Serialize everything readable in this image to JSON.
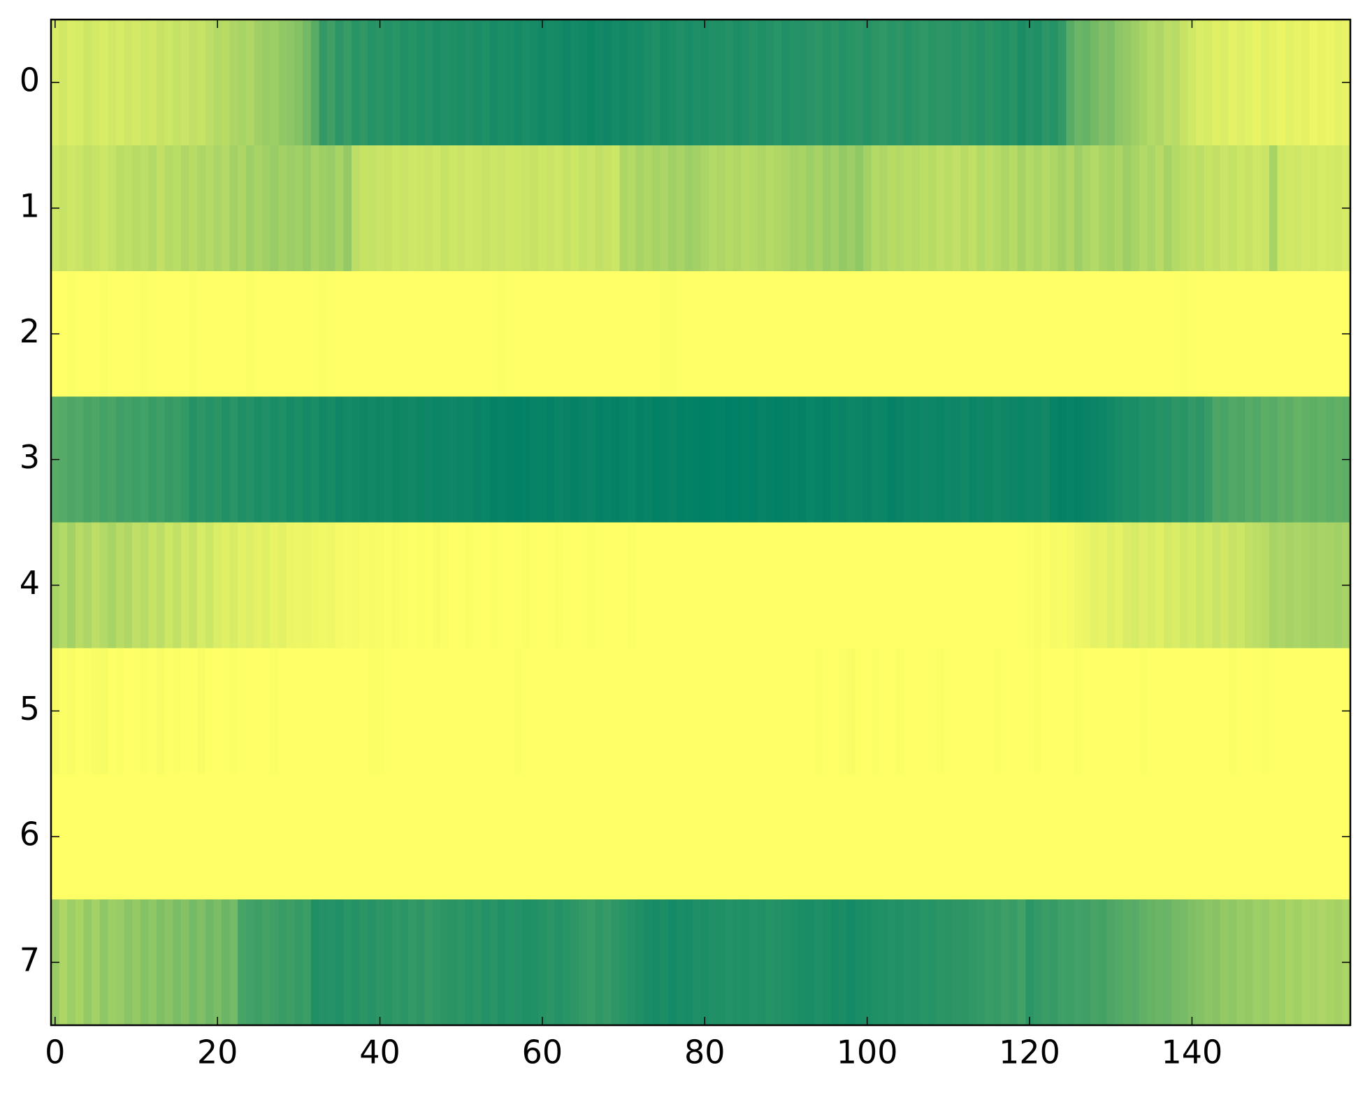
{
  "chart_data": {
    "type": "heatmap",
    "colormap": "summer",
    "xlim": [
      -0.5,
      159.5
    ],
    "ylim": [
      7.5,
      -0.5
    ],
    "xticks": [
      0,
      20,
      40,
      60,
      80,
      100,
      120,
      140
    ],
    "yticks": [
      0,
      1,
      2,
      3,
      4,
      5,
      6,
      7
    ],
    "values": [
      [
        0.85,
        0.82,
        0.86,
        0.84,
        0.8,
        0.83,
        0.85,
        0.82,
        0.84,
        0.81,
        0.83,
        0.8,
        0.82,
        0.78,
        0.8,
        0.77,
        0.79,
        0.76,
        0.78,
        0.74,
        0.7,
        0.72,
        0.68,
        0.66,
        0.69,
        0.63,
        0.6,
        0.62,
        0.57,
        0.55,
        0.52,
        0.45,
        0.35,
        0.2,
        0.25,
        0.18,
        0.22,
        0.16,
        0.19,
        0.15,
        0.17,
        0.14,
        0.16,
        0.13,
        0.15,
        0.12,
        0.14,
        0.11,
        0.13,
        0.12,
        0.11,
        0.13,
        0.1,
        0.12,
        0.09,
        0.11,
        0.1,
        0.08,
        0.1,
        0.09,
        0.07,
        0.09,
        0.08,
        0.06,
        0.08,
        0.07,
        0.05,
        0.07,
        0.06,
        0.08,
        0.07,
        0.09,
        0.08,
        0.1,
        0.12,
        0.09,
        0.11,
        0.13,
        0.1,
        0.12,
        0.11,
        0.13,
        0.12,
        0.14,
        0.11,
        0.13,
        0.15,
        0.12,
        0.14,
        0.16,
        0.13,
        0.15,
        0.14,
        0.16,
        0.18,
        0.15,
        0.17,
        0.14,
        0.16,
        0.18,
        0.15,
        0.17,
        0.19,
        0.16,
        0.18,
        0.15,
        0.17,
        0.19,
        0.16,
        0.18,
        0.17,
        0.15,
        0.18,
        0.16,
        0.14,
        0.17,
        0.15,
        0.13,
        0.16,
        0.1,
        0.14,
        0.12,
        0.18,
        0.15,
        0.2,
        0.35,
        0.42,
        0.4,
        0.45,
        0.5,
        0.48,
        0.55,
        0.58,
        0.62,
        0.66,
        0.7,
        0.68,
        0.74,
        0.72,
        0.78,
        0.82,
        0.86,
        0.84,
        0.88,
        0.86,
        0.9,
        0.87,
        0.89,
        0.91,
        0.88,
        0.9,
        0.92,
        0.89,
        0.91,
        0.9,
        0.93,
        0.91,
        0.92,
        0.9,
        0.91
      ],
      [
        0.8,
        0.78,
        0.81,
        0.79,
        0.76,
        0.78,
        0.8,
        0.77,
        0.73,
        0.75,
        0.72,
        0.74,
        0.7,
        0.76,
        0.71,
        0.73,
        0.69,
        0.72,
        0.68,
        0.71,
        0.67,
        0.7,
        0.64,
        0.68,
        0.62,
        0.66,
        0.63,
        0.6,
        0.64,
        0.61,
        0.63,
        0.59,
        0.65,
        0.62,
        0.6,
        0.66,
        0.58,
        0.74,
        0.78,
        0.77,
        0.79,
        0.78,
        0.8,
        0.79,
        0.81,
        0.8,
        0.79,
        0.81,
        0.78,
        0.8,
        0.79,
        0.81,
        0.8,
        0.78,
        0.8,
        0.79,
        0.81,
        0.8,
        0.79,
        0.78,
        0.8,
        0.79,
        0.81,
        0.78,
        0.8,
        0.77,
        0.79,
        0.76,
        0.78,
        0.8,
        0.68,
        0.7,
        0.66,
        0.69,
        0.65,
        0.67,
        0.63,
        0.66,
        0.62,
        0.64,
        0.67,
        0.7,
        0.68,
        0.71,
        0.69,
        0.72,
        0.7,
        0.68,
        0.71,
        0.69,
        0.67,
        0.64,
        0.66,
        0.62,
        0.65,
        0.6,
        0.63,
        0.58,
        0.61,
        0.57,
        0.64,
        0.7,
        0.68,
        0.72,
        0.7,
        0.73,
        0.71,
        0.74,
        0.72,
        0.75,
        0.73,
        0.76,
        0.72,
        0.75,
        0.7,
        0.74,
        0.71,
        0.68,
        0.72,
        0.65,
        0.7,
        0.67,
        0.71,
        0.68,
        0.64,
        0.69,
        0.62,
        0.67,
        0.7,
        0.66,
        0.64,
        0.68,
        0.62,
        0.66,
        0.7,
        0.67,
        0.72,
        0.65,
        0.7,
        0.73,
        0.76,
        0.74,
        0.78,
        0.76,
        0.79,
        0.77,
        0.8,
        0.78,
        0.81,
        0.79,
        0.66,
        0.8,
        0.82,
        0.81,
        0.83,
        0.82,
        0.84,
        0.83,
        0.82,
        0.84
      ],
      [
        1.0,
        1.0,
        0.99,
        1.0,
        1.0,
        1.0,
        0.99,
        1.0,
        1.0,
        1.0,
        1.0,
        0.99,
        1.0,
        1.0,
        1.0,
        1.0,
        1.0,
        0.99,
        1.0,
        1.0,
        1.0,
        1.0,
        1.0,
        1.0,
        0.99,
        1.0,
        1.0,
        1.0,
        1.0,
        1.0,
        1.0,
        1.0,
        1.0,
        0.99,
        1.0,
        1.0,
        1.0,
        1.0,
        1.0,
        1.0,
        1.0,
        1.0,
        1.0,
        1.0,
        1.0,
        1.0,
        1.0,
        1.0,
        1.0,
        1.0,
        1.0,
        1.0,
        1.0,
        1.0,
        1.0,
        0.99,
        1.0,
        1.0,
        1.0,
        1.0,
        1.0,
        1.0,
        1.0,
        1.0,
        1.0,
        1.0,
        1.0,
        1.0,
        1.0,
        1.0,
        1.0,
        1.0,
        1.0,
        1.0,
        1.0,
        0.99,
        0.99,
        1.0,
        1.0,
        1.0,
        1.0,
        1.0,
        1.0,
        1.0,
        1.0,
        1.0,
        1.0,
        1.0,
        1.0,
        1.0,
        1.0,
        1.0,
        1.0,
        1.0,
        1.0,
        1.0,
        1.0,
        1.0,
        1.0,
        1.0,
        1.0,
        1.0,
        1.0,
        1.0,
        1.0,
        1.0,
        1.0,
        1.0,
        1.0,
        1.0,
        1.0,
        1.0,
        1.0,
        1.0,
        1.0,
        1.0,
        1.0,
        1.0,
        1.0,
        1.0,
        1.0,
        1.0,
        1.0,
        1.0,
        1.0,
        1.0,
        1.0,
        1.0,
        1.0,
        1.0,
        1.0,
        1.0,
        1.0,
        1.0,
        1.0,
        1.0,
        1.0,
        1.0,
        1.0,
        0.99,
        1.0,
        1.0,
        1.0,
        1.0,
        1.0,
        1.0,
        1.0,
        1.0,
        1.0,
        1.0,
        1.0,
        1.0,
        1.0,
        1.0,
        1.0,
        1.0,
        1.0,
        1.0,
        1.0,
        1.0
      ],
      [
        0.35,
        0.33,
        0.3,
        0.32,
        0.28,
        0.3,
        0.27,
        0.29,
        0.25,
        0.27,
        0.24,
        0.26,
        0.22,
        0.25,
        0.21,
        0.23,
        0.2,
        0.14,
        0.18,
        0.15,
        0.17,
        0.13,
        0.16,
        0.12,
        0.14,
        0.11,
        0.13,
        0.1,
        0.12,
        0.09,
        0.11,
        0.08,
        0.1,
        0.07,
        0.09,
        0.06,
        0.08,
        0.07,
        0.06,
        0.07,
        0.06,
        0.07,
        0.05,
        0.06,
        0.07,
        0.05,
        0.06,
        0.04,
        0.05,
        0.06,
        0.04,
        0.05,
        0.03,
        0.04,
        0.02,
        0.03,
        0.02,
        0.01,
        0.02,
        0.03,
        0.03,
        0.02,
        0.04,
        0.03,
        0.02,
        0.03,
        0.04,
        0.02,
        0.03,
        0.02,
        0.03,
        0.04,
        0.02,
        0.03,
        0.01,
        0.02,
        0.03,
        0.01,
        0.02,
        0.01,
        0.0,
        0.01,
        0.02,
        0.0,
        0.01,
        0.02,
        0.01,
        0.03,
        0.02,
        0.01,
        0.02,
        0.03,
        0.02,
        0.04,
        0.03,
        0.02,
        0.04,
        0.03,
        0.05,
        0.04,
        0.03,
        0.05,
        0.04,
        0.02,
        0.03,
        0.05,
        0.04,
        0.06,
        0.05,
        0.04,
        0.06,
        0.05,
        0.07,
        0.04,
        0.06,
        0.05,
        0.07,
        0.06,
        0.05,
        0.04,
        0.06,
        0.05,
        0.07,
        0.03,
        0.02,
        0.03,
        0.02,
        0.03,
        0.04,
        0.05,
        0.07,
        0.09,
        0.11,
        0.1,
        0.13,
        0.12,
        0.15,
        0.14,
        0.18,
        0.16,
        0.2,
        0.18,
        0.22,
        0.3,
        0.28,
        0.32,
        0.3,
        0.34,
        0.32,
        0.36,
        0.34,
        0.38,
        0.36,
        0.4,
        0.38,
        0.37,
        0.39,
        0.36,
        0.38,
        0.37
      ],
      [
        0.66,
        0.7,
        0.64,
        0.72,
        0.68,
        0.74,
        0.7,
        0.66,
        0.72,
        0.69,
        0.75,
        0.72,
        0.78,
        0.74,
        0.8,
        0.76,
        0.82,
        0.78,
        0.84,
        0.8,
        0.86,
        0.88,
        0.85,
        0.89,
        0.87,
        0.9,
        0.88,
        0.91,
        0.89,
        0.92,
        0.93,
        0.92,
        0.94,
        0.95,
        0.94,
        0.96,
        0.97,
        0.96,
        0.98,
        0.97,
        0.98,
        0.99,
        0.98,
        0.99,
        1.0,
        0.99,
        1.0,
        0.98,
        0.99,
        1.0,
        1.0,
        0.99,
        1.0,
        1.0,
        0.99,
        1.0,
        1.0,
        1.0,
        0.99,
        1.0,
        1.0,
        1.0,
        0.99,
        1.0,
        1.0,
        1.0,
        0.99,
        1.0,
        1.0,
        1.0,
        1.0,
        0.99,
        1.0,
        1.0,
        1.0,
        1.0,
        1.0,
        1.0,
        1.0,
        1.0,
        1.0,
        1.0,
        1.0,
        1.0,
        1.0,
        1.0,
        1.0,
        1.0,
        1.0,
        1.0,
        1.0,
        1.0,
        1.0,
        1.0,
        1.0,
        1.0,
        1.0,
        1.0,
        1.0,
        1.0,
        1.0,
        1.0,
        1.0,
        1.0,
        1.0,
        1.0,
        1.0,
        1.0,
        1.0,
        1.0,
        1.0,
        1.0,
        1.0,
        1.0,
        1.0,
        1.0,
        1.0,
        1.0,
        1.0,
        1.0,
        0.99,
        0.98,
        0.99,
        0.97,
        0.98,
        0.96,
        0.94,
        0.92,
        0.9,
        0.91,
        0.88,
        0.9,
        0.86,
        0.84,
        0.87,
        0.85,
        0.88,
        0.83,
        0.86,
        0.82,
        0.84,
        0.8,
        0.83,
        0.79,
        0.82,
        0.78,
        0.8,
        0.76,
        0.74,
        0.72,
        0.66,
        0.68,
        0.65,
        0.67,
        0.66,
        0.64,
        0.66,
        0.65,
        0.63,
        0.66
      ],
      [
        0.97,
        0.99,
        0.98,
        1.0,
        0.99,
        0.98,
        0.97,
        1.0,
        0.99,
        1.0,
        1.0,
        0.99,
        1.0,
        0.98,
        1.0,
        0.99,
        1.0,
        1.0,
        0.98,
        1.0,
        1.0,
        1.0,
        0.99,
        1.0,
        1.0,
        1.0,
        1.0,
        0.99,
        1.0,
        1.0,
        1.0,
        1.0,
        1.0,
        1.0,
        1.0,
        1.0,
        1.0,
        1.0,
        1.0,
        0.99,
        0.99,
        1.0,
        1.0,
        1.0,
        1.0,
        1.0,
        1.0,
        1.0,
        1.0,
        1.0,
        1.0,
        1.0,
        1.0,
        1.0,
        1.0,
        1.0,
        1.0,
        0.99,
        1.0,
        1.0,
        1.0,
        1.0,
        1.0,
        1.0,
        1.0,
        1.0,
        1.0,
        1.0,
        1.0,
        1.0,
        1.0,
        1.0,
        1.0,
        1.0,
        1.0,
        1.0,
        1.0,
        1.0,
        1.0,
        1.0,
        1.0,
        1.0,
        1.0,
        1.0,
        1.0,
        1.0,
        1.0,
        1.0,
        1.0,
        1.0,
        1.0,
        1.0,
        1.0,
        1.0,
        0.99,
        1.0,
        1.0,
        0.99,
        0.98,
        1.0,
        1.0,
        0.99,
        1.0,
        1.0,
        0.99,
        1.0,
        1.0,
        1.0,
        1.0,
        0.99,
        1.0,
        1.0,
        1.0,
        1.0,
        1.0,
        1.0,
        0.99,
        1.0,
        1.0,
        1.0,
        1.0,
        0.99,
        1.0,
        1.0,
        1.0,
        1.0,
        0.99,
        1.0,
        1.0,
        1.0,
        1.0,
        1.0,
        1.0,
        1.0,
        0.99,
        1.0,
        1.0,
        1.0,
        1.0,
        1.0,
        1.0,
        1.0,
        1.0,
        1.0,
        1.0,
        0.99,
        1.0,
        1.0,
        1.0,
        0.99,
        1.0,
        1.0,
        1.0,
        1.0,
        1.0,
        1.0,
        1.0,
        1.0,
        1.0,
        1.0
      ],
      [
        1.0,
        1.0,
        1.0,
        1.0,
        1.0,
        1.0,
        1.0,
        1.0,
        1.0,
        1.0,
        1.0,
        1.0,
        1.0,
        1.0,
        1.0,
        1.0,
        1.0,
        1.0,
        1.0,
        1.0,
        1.0,
        1.0,
        1.0,
        1.0,
        1.0,
        1.0,
        1.0,
        1.0,
        1.0,
        1.0,
        1.0,
        1.0,
        1.0,
        1.0,
        1.0,
        1.0,
        1.0,
        1.0,
        1.0,
        1.0,
        1.0,
        1.0,
        1.0,
        1.0,
        1.0,
        1.0,
        1.0,
        1.0,
        1.0,
        1.0,
        1.0,
        1.0,
        1.0,
        1.0,
        1.0,
        1.0,
        1.0,
        1.0,
        1.0,
        1.0,
        1.0,
        1.0,
        1.0,
        1.0,
        1.0,
        1.0,
        1.0,
        1.0,
        1.0,
        1.0,
        1.0,
        1.0,
        1.0,
        1.0,
        1.0,
        1.0,
        1.0,
        1.0,
        1.0,
        1.0,
        1.0,
        1.0,
        1.0,
        1.0,
        1.0,
        1.0,
        1.0,
        1.0,
        1.0,
        1.0,
        1.0,
        1.0,
        1.0,
        1.0,
        1.0,
        1.0,
        1.0,
        1.0,
        1.0,
        1.0,
        1.0,
        1.0,
        1.0,
        1.0,
        1.0,
        1.0,
        1.0,
        1.0,
        1.0,
        1.0,
        1.0,
        1.0,
        1.0,
        1.0,
        1.0,
        1.0,
        1.0,
        1.0,
        1.0,
        1.0,
        1.0,
        1.0,
        1.0,
        1.0,
        1.0,
        1.0,
        1.0,
        1.0,
        1.0,
        1.0,
        1.0,
        1.0,
        1.0,
        1.0,
        1.0,
        1.0,
        1.0,
        1.0,
        1.0,
        1.0,
        1.0,
        1.0,
        1.0,
        1.0,
        1.0,
        1.0,
        1.0,
        1.0,
        1.0,
        1.0,
        1.0,
        1.0,
        1.0,
        1.0,
        1.0,
        1.0,
        1.0,
        1.0,
        1.0,
        1.0
      ],
      [
        0.6,
        0.68,
        0.62,
        0.66,
        0.58,
        0.64,
        0.56,
        0.62,
        0.6,
        0.54,
        0.58,
        0.52,
        0.56,
        0.5,
        0.54,
        0.48,
        0.52,
        0.46,
        0.5,
        0.44,
        0.48,
        0.42,
        0.46,
        0.28,
        0.26,
        0.24,
        0.27,
        0.25,
        0.22,
        0.24,
        0.21,
        0.23,
        0.12,
        0.14,
        0.15,
        0.13,
        0.16,
        0.14,
        0.17,
        0.15,
        0.18,
        0.16,
        0.19,
        0.17,
        0.2,
        0.18,
        0.21,
        0.19,
        0.17,
        0.16,
        0.18,
        0.15,
        0.17,
        0.14,
        0.16,
        0.13,
        0.15,
        0.14,
        0.12,
        0.13,
        0.15,
        0.17,
        0.14,
        0.16,
        0.18,
        0.2,
        0.22,
        0.19,
        0.21,
        0.18,
        0.16,
        0.14,
        0.12,
        0.1,
        0.09,
        0.11,
        0.08,
        0.1,
        0.09,
        0.12,
        0.11,
        0.13,
        0.12,
        0.14,
        0.13,
        0.12,
        0.14,
        0.13,
        0.15,
        0.14,
        0.13,
        0.12,
        0.11,
        0.1,
        0.12,
        0.11,
        0.09,
        0.1,
        0.08,
        0.1,
        0.11,
        0.12,
        0.13,
        0.14,
        0.13,
        0.15,
        0.14,
        0.16,
        0.15,
        0.17,
        0.16,
        0.18,
        0.17,
        0.19,
        0.2,
        0.22,
        0.21,
        0.24,
        0.22,
        0.26,
        0.17,
        0.2,
        0.23,
        0.21,
        0.25,
        0.24,
        0.26,
        0.25,
        0.28,
        0.27,
        0.3,
        0.32,
        0.35,
        0.34,
        0.38,
        0.4,
        0.42,
        0.41,
        0.45,
        0.47,
        0.5,
        0.52,
        0.55,
        0.53,
        0.58,
        0.56,
        0.6,
        0.58,
        0.62,
        0.6,
        0.64,
        0.62,
        0.66,
        0.63,
        0.67,
        0.65,
        0.68,
        0.66,
        0.64,
        0.67
      ]
    ]
  }
}
